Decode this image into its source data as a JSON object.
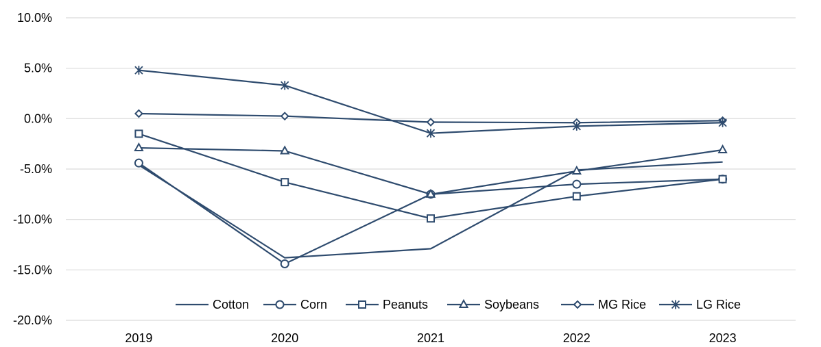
{
  "chart_data": {
    "type": "line",
    "categories": [
      "2019",
      "2020",
      "2021",
      "2022",
      "2023"
    ],
    "series": [
      {
        "name": "Cotton",
        "marker": "none",
        "values": [
          -4.6,
          -13.8,
          -12.9,
          -5.1,
          -4.3
        ]
      },
      {
        "name": "Corn",
        "marker": "circle",
        "values": [
          -4.4,
          -14.4,
          -7.5,
          -6.5,
          -6.0
        ]
      },
      {
        "name": "Peanuts",
        "marker": "square",
        "values": [
          -1.5,
          -6.3,
          -9.9,
          -7.7,
          -6.0
        ]
      },
      {
        "name": "Soybeans",
        "marker": "triangle",
        "values": [
          -2.9,
          -3.2,
          -7.5,
          -5.2,
          -3.1
        ]
      },
      {
        "name": "MG Rice",
        "marker": "diamond",
        "values": [
          0.5,
          0.25,
          -0.35,
          -0.4,
          -0.2
        ]
      },
      {
        "name": "LG Rice",
        "marker": "asterisk",
        "values": [
          4.8,
          3.3,
          -1.45,
          -0.75,
          -0.4
        ]
      }
    ],
    "y_ticks": [
      "10.0%",
      "5.0%",
      "0.0%",
      "-5.0%",
      "-10.0%",
      "-15.0%",
      "-20.0%"
    ],
    "ylim": [
      -20,
      10
    ],
    "y_unit": "%",
    "grid": "horizontal",
    "legend_position": "bottom-right",
    "line_color": "#2e4b6e",
    "grid_color": "#d9d9d9"
  }
}
